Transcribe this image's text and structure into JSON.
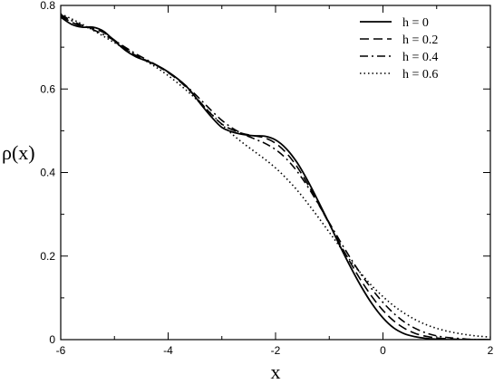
{
  "chart_data": {
    "type": "line",
    "title": "",
    "xlabel": "x",
    "ylabel": "ρ(x)",
    "xlim": [
      -6,
      2
    ],
    "ylim": [
      0,
      0.8
    ],
    "xticks": [
      -6,
      -4,
      -2,
      0,
      2
    ],
    "yticks": [
      0,
      0.2,
      0.4,
      0.6,
      0.8
    ],
    "x_tick_labels": [
      "-6",
      "-4",
      "-2",
      "0",
      "2"
    ],
    "y_tick_labels": [
      "0",
      "0.2",
      "0.4",
      "0.6",
      "0.8"
    ],
    "grid": false,
    "legend_position": "top-right",
    "series": [
      {
        "name": "h = 0",
        "dash": "solid",
        "x": [
          -6,
          -5.8,
          -5.6,
          -5.4,
          -5.2,
          -5.0,
          -4.8,
          -4.6,
          -4.4,
          -4.2,
          -4.0,
          -3.8,
          -3.6,
          -3.4,
          -3.2,
          -3.0,
          -2.8,
          -2.6,
          -2.4,
          -2.2,
          -2.0,
          -1.8,
          -1.6,
          -1.4,
          -1.2,
          -1.0,
          -0.8,
          -0.6,
          -0.4,
          -0.2,
          0.0,
          0.2,
          0.4,
          0.6,
          0.8,
          1.0,
          1.2,
          1.4,
          1.6,
          1.8,
          2.0
        ],
        "y": [
          0.772,
          0.755,
          0.748,
          0.748,
          0.738,
          0.715,
          0.693,
          0.677,
          0.667,
          0.656,
          0.641,
          0.622,
          0.598,
          0.565,
          0.534,
          0.508,
          0.497,
          0.491,
          0.488,
          0.487,
          0.478,
          0.457,
          0.424,
          0.38,
          0.33,
          0.278,
          0.224,
          0.173,
          0.126,
          0.085,
          0.052,
          0.028,
          0.014,
          0.007,
          0.003,
          0.001,
          0.0,
          0.0,
          0.0,
          0.0,
          0.0
        ]
      },
      {
        "name": "h = 0.2",
        "dash": "dashed",
        "x": [
          -6,
          -5.8,
          -5.6,
          -5.4,
          -5.2,
          -5.0,
          -4.8,
          -4.6,
          -4.4,
          -4.2,
          -4.0,
          -3.8,
          -3.6,
          -3.4,
          -3.2,
          -3.0,
          -2.8,
          -2.6,
          -2.4,
          -2.2,
          -2.0,
          -1.8,
          -1.6,
          -1.4,
          -1.2,
          -1.0,
          -0.8,
          -0.6,
          -0.4,
          -0.2,
          0.0,
          0.2,
          0.4,
          0.6,
          0.8,
          1.0,
          1.2,
          1.4,
          1.6,
          1.8,
          2.0
        ],
        "y": [
          0.775,
          0.76,
          0.75,
          0.745,
          0.735,
          0.717,
          0.697,
          0.68,
          0.668,
          0.655,
          0.639,
          0.62,
          0.596,
          0.568,
          0.54,
          0.516,
          0.502,
          0.493,
          0.488,
          0.483,
          0.47,
          0.447,
          0.414,
          0.372,
          0.325,
          0.277,
          0.229,
          0.183,
          0.14,
          0.102,
          0.07,
          0.045,
          0.027,
          0.015,
          0.008,
          0.004,
          0.002,
          0.001,
          0.0,
          0.0,
          0.0
        ]
      },
      {
        "name": "h = 0.4",
        "dash": "dashdot",
        "x": [
          -6,
          -5.8,
          -5.6,
          -5.4,
          -5.2,
          -5.0,
          -4.8,
          -4.6,
          -4.4,
          -4.2,
          -4.0,
          -3.8,
          -3.6,
          -3.4,
          -3.2,
          -3.0,
          -2.8,
          -2.6,
          -2.4,
          -2.2,
          -2.0,
          -1.8,
          -1.6,
          -1.4,
          -1.2,
          -1.0,
          -0.8,
          -0.6,
          -0.4,
          -0.2,
          0.0,
          0.2,
          0.4,
          0.6,
          0.8,
          1.0,
          1.2,
          1.4,
          1.6,
          1.8,
          2.0
        ],
        "y": [
          0.778,
          0.764,
          0.752,
          0.742,
          0.73,
          0.716,
          0.7,
          0.684,
          0.67,
          0.656,
          0.64,
          0.622,
          0.6,
          0.575,
          0.549,
          0.525,
          0.506,
          0.492,
          0.481,
          0.47,
          0.455,
          0.433,
          0.403,
          0.366,
          0.324,
          0.28,
          0.236,
          0.194,
          0.155,
          0.12,
          0.089,
          0.063,
          0.042,
          0.027,
          0.016,
          0.009,
          0.005,
          0.003,
          0.001,
          0.0,
          0.0
        ]
      },
      {
        "name": "h = 0.6",
        "dash": "dotted",
        "x": [
          -6,
          -5.8,
          -5.6,
          -5.4,
          -5.2,
          -5.0,
          -4.8,
          -4.6,
          -4.4,
          -4.2,
          -4.0,
          -3.8,
          -3.6,
          -3.4,
          -3.2,
          -3.0,
          -2.8,
          -2.6,
          -2.4,
          -2.2,
          -2.0,
          -1.8,
          -1.6,
          -1.4,
          -1.2,
          -1.0,
          -0.8,
          -0.6,
          -0.4,
          -0.2,
          0.0,
          0.2,
          0.4,
          0.6,
          0.8,
          1.0,
          1.2,
          1.4,
          1.6,
          1.8,
          2.0
        ],
        "y": [
          0.78,
          0.768,
          0.755,
          0.741,
          0.726,
          0.711,
          0.696,
          0.681,
          0.666,
          0.65,
          0.632,
          0.612,
          0.59,
          0.566,
          0.541,
          0.515,
          0.491,
          0.47,
          0.451,
          0.432,
          0.411,
          0.386,
          0.358,
          0.326,
          0.292,
          0.257,
          0.222,
          0.188,
          0.157,
          0.128,
          0.103,
          0.081,
          0.063,
          0.048,
          0.036,
          0.027,
          0.02,
          0.015,
          0.011,
          0.008,
          0.006
        ]
      }
    ]
  }
}
